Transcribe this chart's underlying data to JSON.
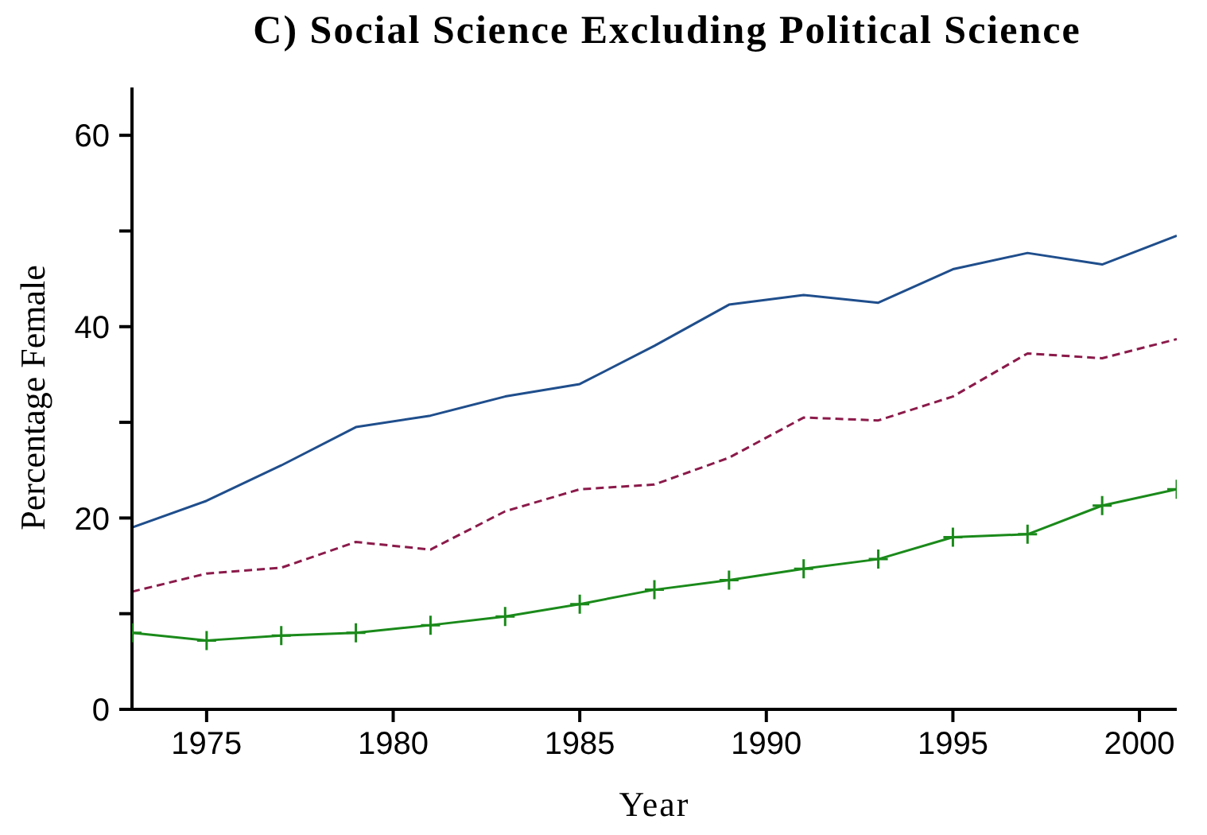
{
  "chart_data": {
    "type": "line",
    "title": "C) Social Science Excluding Political Science",
    "xlabel": "Year",
    "ylabel": "Percentage Female",
    "x": [
      1973,
      1975,
      1977,
      1979,
      1981,
      1983,
      1985,
      1987,
      1989,
      1991,
      1993,
      1995,
      1997,
      1999,
      2001
    ],
    "series": [
      {
        "color": "#1f4e8c",
        "line_style": "solid",
        "marker": "none",
        "values": [
          19,
          21.8,
          25.5,
          29.5,
          30.7,
          32.7,
          34,
          38,
          42.3,
          43.3,
          42.5,
          46,
          47.7,
          46.5,
          49.5
        ]
      },
      {
        "color": "#8b1a4a",
        "line_style": "dashed",
        "marker": "none",
        "values": [
          12.3,
          14.2,
          14.8,
          17.5,
          16.7,
          20.7,
          23,
          23.5,
          26.3,
          30.5,
          30.2,
          32.7,
          37.2,
          36.7,
          38.7
        ]
      },
      {
        "color": "#1a8a1a",
        "line_style": "solid",
        "marker": "cross",
        "values": [
          8,
          7.2,
          7.7,
          8,
          8.8,
          9.7,
          11,
          12.5,
          13.5,
          14.7,
          15.7,
          18,
          18.3,
          21.3,
          23
        ]
      }
    ],
    "xlim": [
      1973,
      2001
    ],
    "xticks": [
      1975,
      1980,
      1985,
      1990,
      1995,
      2000
    ],
    "ylim": [
      0,
      65
    ],
    "yticks": [
      0,
      {
        "value": 10,
        "label": null
      },
      20,
      {
        "value": 30,
        "label": null
      },
      40,
      {
        "value": 50,
        "label": null
      },
      60
    ],
    "grid": false,
    "legend": false
  }
}
